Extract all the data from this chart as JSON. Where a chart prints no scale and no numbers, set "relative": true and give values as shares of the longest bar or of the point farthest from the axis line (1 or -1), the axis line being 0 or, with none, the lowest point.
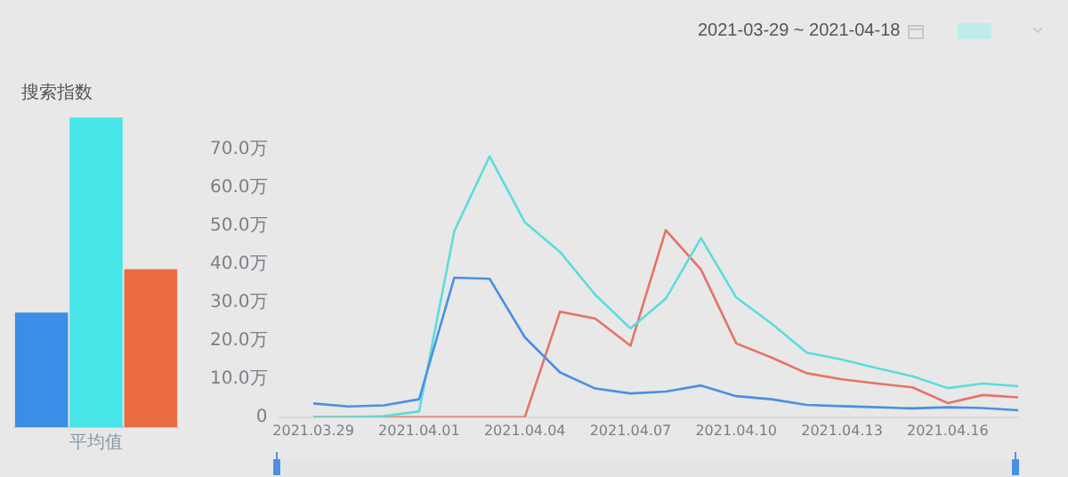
{
  "chart_data": [
    {
      "type": "bar",
      "title": "搜索指数",
      "relative": true,
      "categories": [
        null,
        "平均值",
        null
      ],
      "legend": false,
      "grid": false,
      "values": [
        0.37,
        1,
        0.51
      ],
      "colors": [
        "#3a8ee6",
        "#48e6e8",
        "#ea6b40"
      ]
    },
    {
      "type": "line",
      "annotations": [
        "2021-03-29 ~ 2021-04-18"
      ],
      "grid": false,
      "legend": false,
      "marker": "none",
      "line_style": "solid",
      "x": [
        "2021-03-29",
        "2021-03-30",
        "2021-03-31",
        "2021-04-01",
        "2021-04-02",
        "2021-04-03",
        "2021-04-04",
        "2021-04-05",
        "2021-04-06",
        "2021-04-07",
        "2021-04-08",
        "2021-04-09",
        "2021-04-10",
        "2021-04-11",
        "2021-04-12",
        "2021-04-13",
        "2021-04-14",
        "2021-04-15",
        "2021-04-16",
        "2021-04-17",
        "2021-04-18"
      ],
      "xlim": [
        "2021-03-28",
        "2021-04-18"
      ],
      "xticks": [
        {
          "value": "2021-03-29",
          "label": "2021.03.29"
        },
        {
          "value": "2021-04-01",
          "label": "2021.04.01"
        },
        {
          "value": "2021-04-04",
          "label": "2021.04.04"
        },
        {
          "value": "2021-04-07",
          "label": "2021.04.07"
        },
        {
          "value": "2021-04-10",
          "label": "2021.04.10"
        },
        {
          "value": "2021-04-13",
          "label": "2021.04.13"
        },
        {
          "value": "2021-04-16",
          "label": "2021.04.16"
        }
      ],
      "ylim": [
        0,
        70
      ],
      "yticks": [
        0,
        {
          "value": 10,
          "label": "10.0万"
        },
        {
          "value": 20,
          "label": "20.0万"
        },
        {
          "value": 30,
          "label": "30.0万"
        },
        {
          "value": 40,
          "label": "40.0万"
        },
        {
          "value": 50,
          "label": "50.0万"
        },
        {
          "value": 60,
          "label": "60.0万"
        },
        {
          "value": 70,
          "label": "70.0万"
        }
      ],
      "series": [
        {
          "color": "#4a90e2",
          "values": [
            3.6,
            2.8,
            3.1,
            4.7,
            36.5,
            36.2,
            20.9,
            11.7,
            7.5,
            6.2,
            6.7,
            8.3,
            5.5,
            4.7,
            3.2,
            2.9,
            2.6,
            2.3,
            2.6,
            2.4,
            1.8
          ]
        },
        {
          "color": "#5cdcdc",
          "values": [
            0,
            0,
            0.3,
            1.5,
            48.7,
            68.2,
            51,
            43.2,
            32,
            23.2,
            31,
            46.8,
            31.3,
            24.5,
            16.9,
            15.1,
            12.8,
            10.7,
            7.6,
            8.8,
            8.1
          ]
        },
        {
          "color": "#e57368",
          "values": [
            0,
            0,
            0,
            0,
            0,
            0,
            0,
            27.6,
            25.8,
            18.7,
            48.9,
            38.6,
            19.3,
            15.6,
            11.5,
            9.9,
            8.8,
            7.8,
            3.7,
            5.8,
            5.2
          ]
        }
      ]
    }
  ]
}
